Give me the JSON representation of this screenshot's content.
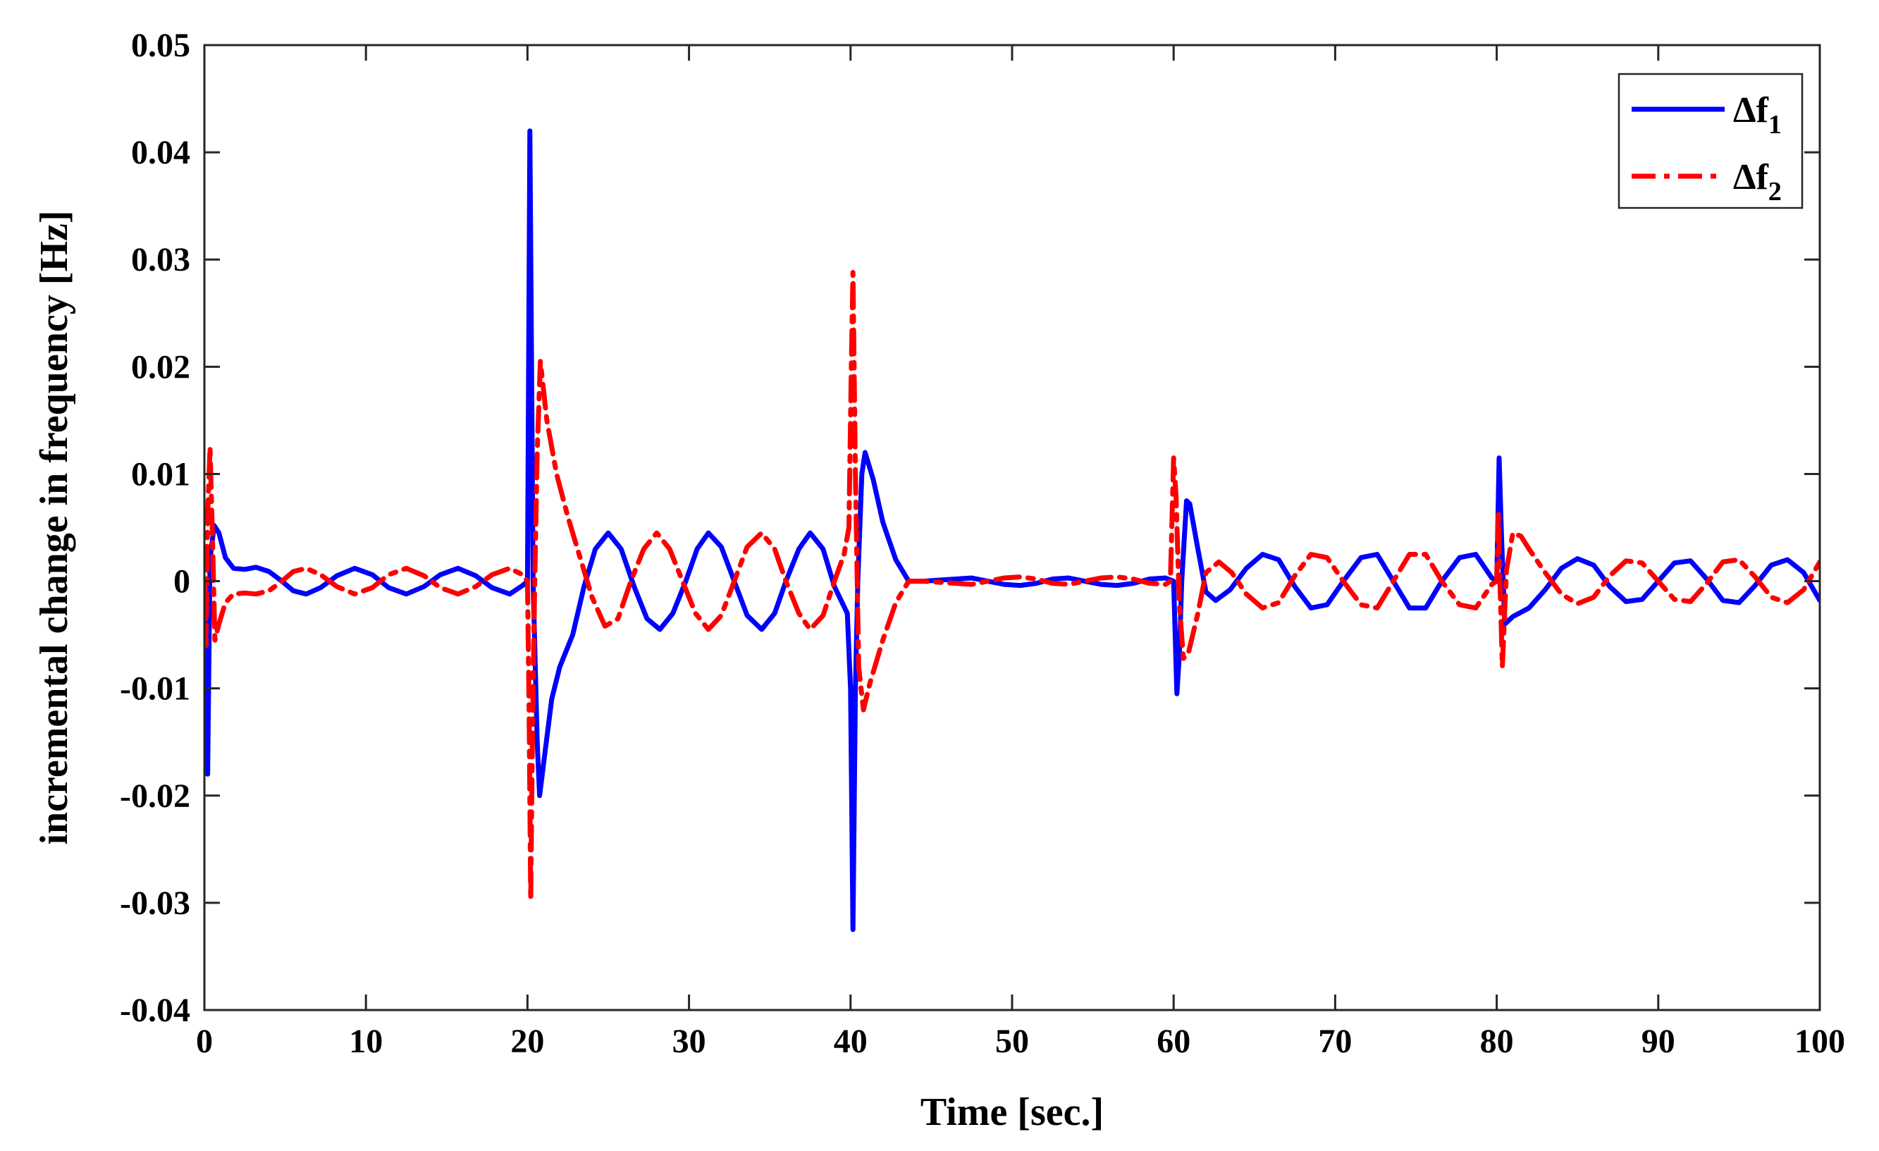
{
  "chart_data": {
    "type": "line",
    "title": "",
    "xlabel": "Time [sec.]",
    "ylabel": "incremental change in frequency [Hz]",
    "xlim": [
      0,
      100
    ],
    "ylim": [
      -0.04,
      0.05
    ],
    "grid": false,
    "legend_position": "top-right",
    "x_ticks": [
      0,
      10,
      20,
      30,
      40,
      50,
      60,
      70,
      80,
      90,
      100
    ],
    "x_tick_labels": [
      "0",
      "10",
      "20",
      "30",
      "40",
      "50",
      "60",
      "70",
      "80",
      "90",
      "100"
    ],
    "y_ticks": [
      -0.04,
      -0.03,
      -0.02,
      -0.01,
      0,
      0.01,
      0.02,
      0.03,
      0.04,
      0.05
    ],
    "y_tick_labels": [
      "-0.04",
      "-0.03",
      "-0.02",
      "-0.01",
      "0",
      "0.01",
      "0.02",
      "0.03",
      "0.04",
      "0.05"
    ],
    "series": [
      {
        "name": "Δf1",
        "legend_main": "Δf",
        "legend_sub": "1",
        "color": "#0000ff",
        "style": "solid",
        "points": [
          [
            0,
            0
          ],
          [
            0.2,
            -0.018
          ],
          [
            0.35,
            0.002
          ],
          [
            0.6,
            0.0052
          ],
          [
            0.9,
            0.0045
          ],
          [
            1.3,
            0.0022
          ],
          [
            1.8,
            0.0012
          ],
          [
            2.5,
            0.0011
          ],
          [
            3.2,
            0.0013
          ],
          [
            4.0,
            0.0009
          ],
          [
            4.8,
            0.0
          ],
          [
            5.5,
            -0.0009
          ],
          [
            6.3,
            -0.0012
          ],
          [
            7.2,
            -0.0006
          ],
          [
            8.2,
            0.0005
          ],
          [
            9.3,
            0.0012
          ],
          [
            10.4,
            0.0006
          ],
          [
            11.4,
            -0.0006
          ],
          [
            12.5,
            -0.0012
          ],
          [
            13.6,
            -0.0005
          ],
          [
            14.6,
            0.0006
          ],
          [
            15.7,
            0.0012
          ],
          [
            16.8,
            0.0005
          ],
          [
            17.8,
            -0.0006
          ],
          [
            18.9,
            -0.0012
          ],
          [
            19.7,
            -0.0004
          ],
          [
            20.0,
            0.0
          ],
          [
            20.15,
            0.042
          ],
          [
            20.35,
            0.0
          ],
          [
            20.6,
            -0.015
          ],
          [
            20.75,
            -0.02
          ],
          [
            21.0,
            -0.017
          ],
          [
            21.5,
            -0.011
          ],
          [
            22.0,
            -0.008
          ],
          [
            22.8,
            -0.005
          ],
          [
            23.5,
            -0.0005
          ],
          [
            24.2,
            0.003
          ],
          [
            25.0,
            0.0045
          ],
          [
            25.8,
            0.003
          ],
          [
            26.6,
            -0.0005
          ],
          [
            27.4,
            -0.0035
          ],
          [
            28.2,
            -0.0045
          ],
          [
            29.0,
            -0.003
          ],
          [
            29.8,
            0.0
          ],
          [
            30.5,
            0.003
          ],
          [
            31.2,
            0.0045
          ],
          [
            32.0,
            0.0032
          ],
          [
            32.8,
            0.0
          ],
          [
            33.6,
            -0.0032
          ],
          [
            34.5,
            -0.0045
          ],
          [
            35.3,
            -0.003
          ],
          [
            36.0,
            0.0
          ],
          [
            36.8,
            0.003
          ],
          [
            37.5,
            0.0045
          ],
          [
            38.3,
            0.003
          ],
          [
            39.0,
            -0.0005
          ],
          [
            39.8,
            -0.003
          ],
          [
            40.0,
            -0.01
          ],
          [
            40.15,
            -0.0325
          ],
          [
            40.3,
            -0.01
          ],
          [
            40.45,
            0.0
          ],
          [
            40.7,
            0.01
          ],
          [
            40.9,
            0.012
          ],
          [
            41.4,
            0.0095
          ],
          [
            42.0,
            0.0055
          ],
          [
            42.8,
            0.002
          ],
          [
            43.6,
            0.0
          ],
          [
            44.5,
            0.0
          ],
          [
            45.5,
            0.0001
          ],
          [
            46.5,
            0.0002
          ],
          [
            47.5,
            0.0003
          ],
          [
            48.5,
            0.0
          ],
          [
            49.5,
            -0.0003
          ],
          [
            50.5,
            -0.0004
          ],
          [
            51.5,
            -0.0002
          ],
          [
            52.5,
            0.0002
          ],
          [
            53.5,
            0.0003
          ],
          [
            54.5,
            0.0
          ],
          [
            55.5,
            -0.0003
          ],
          [
            56.5,
            -0.0004
          ],
          [
            57.5,
            -0.0002
          ],
          [
            58.5,
            0.0002
          ],
          [
            59.5,
            0.0003
          ],
          [
            60.0,
            0.0
          ],
          [
            60.2,
            -0.0105
          ],
          [
            60.35,
            -0.007
          ],
          [
            60.5,
            0.0
          ],
          [
            60.8,
            0.0075
          ],
          [
            61.0,
            0.0072
          ],
          [
            61.5,
            0.003
          ],
          [
            62.0,
            -0.001
          ],
          [
            62.6,
            -0.0018
          ],
          [
            63.5,
            -0.0008
          ],
          [
            64.5,
            0.0012
          ],
          [
            65.5,
            0.0025
          ],
          [
            66.5,
            0.002
          ],
          [
            67.5,
            -0.0005
          ],
          [
            68.5,
            -0.0025
          ],
          [
            69.5,
            -0.0022
          ],
          [
            70.5,
            0.0
          ],
          [
            71.6,
            0.0022
          ],
          [
            72.6,
            0.0025
          ],
          [
            73.6,
            0.0
          ],
          [
            74.6,
            -0.0025
          ],
          [
            75.6,
            -0.0025
          ],
          [
            76.6,
            0.0
          ],
          [
            77.7,
            0.0022
          ],
          [
            78.7,
            0.0025
          ],
          [
            79.7,
            0.0003
          ],
          [
            80.0,
            0.0
          ],
          [
            80.15,
            0.0115
          ],
          [
            80.3,
            0.004
          ],
          [
            80.5,
            -0.004
          ],
          [
            81.0,
            -0.0033
          ],
          [
            82.0,
            -0.0025
          ],
          [
            83.0,
            -0.0008
          ],
          [
            84.0,
            0.0012
          ],
          [
            85.0,
            0.0021
          ],
          [
            86.0,
            0.0015
          ],
          [
            87.0,
            -0.0005
          ],
          [
            88.0,
            -0.0019
          ],
          [
            89.0,
            -0.0017
          ],
          [
            90.0,
            0.0
          ],
          [
            91.0,
            0.0017
          ],
          [
            92.0,
            0.0019
          ],
          [
            93.0,
            0.0002
          ],
          [
            94.0,
            -0.0018
          ],
          [
            95.0,
            -0.002
          ],
          [
            96.0,
            -0.0004
          ],
          [
            97.0,
            0.0015
          ],
          [
            98.0,
            0.002
          ],
          [
            99.0,
            0.0008
          ],
          [
            100.0,
            -0.0018
          ]
        ]
      },
      {
        "name": "Δf2",
        "legend_main": "Δf",
        "legend_sub": "2",
        "color": "#ff0000",
        "style": "dashdot",
        "points": [
          [
            0,
            0
          ],
          [
            0.1,
            -0.006
          ],
          [
            0.2,
            0.006
          ],
          [
            0.35,
            0.0125
          ],
          [
            0.5,
            0.004
          ],
          [
            0.65,
            -0.0055
          ],
          [
            0.9,
            -0.004
          ],
          [
            1.3,
            -0.002
          ],
          [
            1.8,
            -0.0012
          ],
          [
            2.5,
            -0.0011
          ],
          [
            3.2,
            -0.0012
          ],
          [
            4.0,
            -0.0009
          ],
          [
            4.8,
            0.0
          ],
          [
            5.5,
            0.0009
          ],
          [
            6.3,
            0.0012
          ],
          [
            7.2,
            0.0006
          ],
          [
            8.2,
            -0.0005
          ],
          [
            9.3,
            -0.0012
          ],
          [
            10.4,
            -0.0006
          ],
          [
            11.4,
            0.0006
          ],
          [
            12.5,
            0.0012
          ],
          [
            13.6,
            0.0005
          ],
          [
            14.6,
            -0.0006
          ],
          [
            15.7,
            -0.0012
          ],
          [
            16.8,
            -0.0005
          ],
          [
            17.8,
            0.0006
          ],
          [
            18.9,
            0.0012
          ],
          [
            19.7,
            0.0006
          ],
          [
            20.0,
            0.0
          ],
          [
            20.1,
            -0.012
          ],
          [
            20.2,
            -0.0298
          ],
          [
            20.3,
            -0.015
          ],
          [
            20.45,
            0.0
          ],
          [
            20.6,
            0.012
          ],
          [
            20.8,
            0.0205
          ],
          [
            21.2,
            0.015
          ],
          [
            21.8,
            0.01
          ],
          [
            22.5,
            0.006
          ],
          [
            23.2,
            0.0025
          ],
          [
            24.0,
            -0.0015
          ],
          [
            24.8,
            -0.0042
          ],
          [
            25.6,
            -0.0035
          ],
          [
            26.4,
            0.0
          ],
          [
            27.2,
            0.003
          ],
          [
            28.0,
            0.0045
          ],
          [
            28.8,
            0.003
          ],
          [
            29.6,
            0.0
          ],
          [
            30.4,
            -0.003
          ],
          [
            31.2,
            -0.0045
          ],
          [
            32.0,
            -0.0032
          ],
          [
            32.8,
            0.0
          ],
          [
            33.6,
            0.0032
          ],
          [
            34.5,
            0.0045
          ],
          [
            35.3,
            0.003
          ],
          [
            36.0,
            0.0
          ],
          [
            36.8,
            -0.003
          ],
          [
            37.5,
            -0.0045
          ],
          [
            38.3,
            -0.0032
          ],
          [
            39.0,
            0.0
          ],
          [
            39.6,
            0.0025
          ],
          [
            39.9,
            0.005
          ],
          [
            40.05,
            0.02
          ],
          [
            40.15,
            0.0288
          ],
          [
            40.3,
            0.01
          ],
          [
            40.5,
            -0.008
          ],
          [
            40.8,
            -0.012
          ],
          [
            41.2,
            -0.0095
          ],
          [
            42.0,
            -0.0055
          ],
          [
            42.8,
            -0.002
          ],
          [
            43.6,
            0.0
          ],
          [
            44.5,
            0.0
          ],
          [
            45.5,
            -0.0001
          ],
          [
            46.5,
            -0.0002
          ],
          [
            47.5,
            -0.0003
          ],
          [
            48.5,
            0.0
          ],
          [
            49.5,
            0.0003
          ],
          [
            50.5,
            0.0004
          ],
          [
            51.5,
            0.0002
          ],
          [
            52.5,
            -0.0002
          ],
          [
            53.5,
            -0.0003
          ],
          [
            54.5,
            0.0
          ],
          [
            55.5,
            0.0003
          ],
          [
            56.5,
            0.0004
          ],
          [
            57.5,
            0.0002
          ],
          [
            58.5,
            -0.0002
          ],
          [
            59.5,
            -0.0003
          ],
          [
            59.8,
            0.0
          ],
          [
            60.0,
            0.0115
          ],
          [
            60.15,
            0.008
          ],
          [
            60.35,
            -0.002
          ],
          [
            60.6,
            -0.0072
          ],
          [
            60.9,
            -0.0068
          ],
          [
            61.5,
            -0.003
          ],
          [
            62.0,
            0.0008
          ],
          [
            62.8,
            0.0018
          ],
          [
            63.6,
            0.0008
          ],
          [
            64.5,
            -0.0012
          ],
          [
            65.5,
            -0.0025
          ],
          [
            66.5,
            -0.002
          ],
          [
            67.5,
            0.0005
          ],
          [
            68.5,
            0.0025
          ],
          [
            69.5,
            0.0022
          ],
          [
            70.5,
            0.0
          ],
          [
            71.6,
            -0.0022
          ],
          [
            72.6,
            -0.0025
          ],
          [
            73.6,
            0.0
          ],
          [
            74.6,
            0.0025
          ],
          [
            75.6,
            0.0025
          ],
          [
            76.6,
            0.0
          ],
          [
            77.7,
            -0.0022
          ],
          [
            78.7,
            -0.0025
          ],
          [
            79.7,
            -0.0003
          ],
          [
            80.0,
            0.0
          ],
          [
            80.1,
            0.0065
          ],
          [
            80.2,
            0.0
          ],
          [
            80.35,
            -0.008
          ],
          [
            80.6,
            0.001
          ],
          [
            81.0,
            0.0045
          ],
          [
            81.5,
            0.0042
          ],
          [
            82.0,
            0.003
          ],
          [
            83.0,
            0.0008
          ],
          [
            84.0,
            -0.0012
          ],
          [
            85.0,
            -0.0021
          ],
          [
            86.0,
            -0.0015
          ],
          [
            87.0,
            0.0005
          ],
          [
            88.0,
            0.0019
          ],
          [
            89.0,
            0.0017
          ],
          [
            90.0,
            0.0
          ],
          [
            91.0,
            -0.0017
          ],
          [
            92.0,
            -0.0019
          ],
          [
            93.0,
            -0.0002
          ],
          [
            94.0,
            0.0018
          ],
          [
            95.0,
            0.002
          ],
          [
            96.0,
            0.0004
          ],
          [
            97.0,
            -0.0015
          ],
          [
            98.0,
            -0.002
          ],
          [
            99.0,
            -0.0008
          ],
          [
            100.0,
            0.0018
          ]
        ]
      }
    ]
  }
}
